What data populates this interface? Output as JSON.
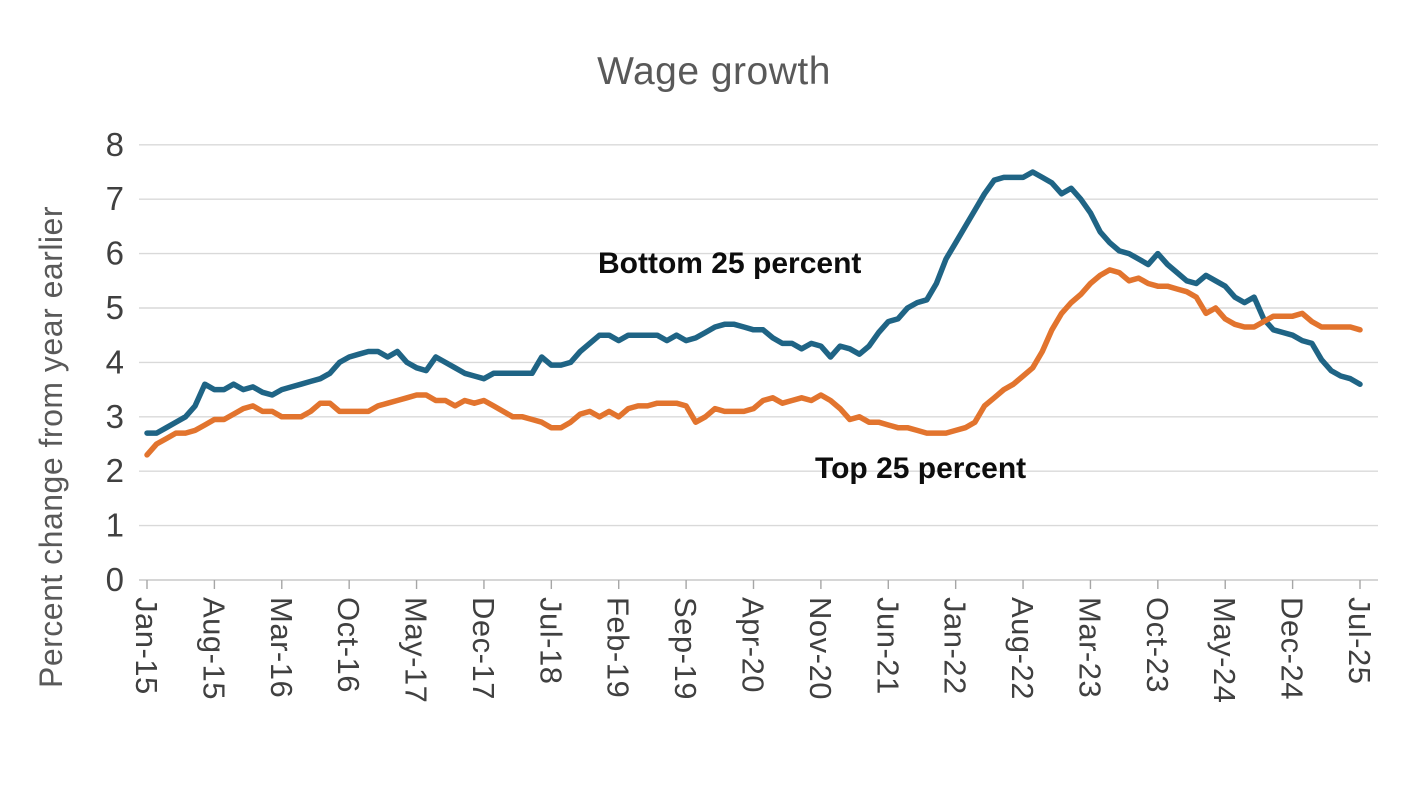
{
  "page": {
    "background": "#ffffff"
  },
  "chart_data": {
    "type": "line",
    "title": "Wage growth",
    "xlabel": "",
    "ylabel": "Percent change from year earlier",
    "ylim": [
      0,
      8
    ],
    "yticks": [
      0,
      1,
      2,
      3,
      4,
      5,
      6,
      7,
      8
    ],
    "grid": "horizontal",
    "legend_position": "none (inline text annotations next to lines)",
    "x_start": "Jan-15",
    "x_end": "Jul-25",
    "x_step_months": 1,
    "x_points_count": 127,
    "xtick_step_months": 7,
    "xtick_labels": [
      "Jan-15",
      "Aug-15",
      "Mar-16",
      "Oct-16",
      "May-17",
      "Dec-17",
      "Jul-18",
      "Feb-19",
      "Sep-19",
      "Apr-20",
      "Nov-20",
      "Jun-21",
      "Jan-22",
      "Aug-22",
      "Mar-23",
      "Oct-23",
      "May-24",
      "Dec-24",
      "Jul-25"
    ],
    "annotations": [
      {
        "text": "Bottom 25 percent",
        "series": "Bottom 25 percent"
      },
      {
        "text": "Top 25 percent",
        "series": "Top 25 percent"
      }
    ],
    "series": [
      {
        "name": "Bottom 25 percent",
        "color": "#1f6485",
        "values": [
          2.7,
          2.7,
          2.8,
          2.9,
          3.0,
          3.2,
          3.6,
          3.5,
          3.5,
          3.6,
          3.5,
          3.55,
          3.45,
          3.4,
          3.5,
          3.55,
          3.6,
          3.65,
          3.7,
          3.8,
          4.0,
          4.1,
          4.15,
          4.2,
          4.2,
          4.1,
          4.2,
          4.0,
          3.9,
          3.85,
          4.1,
          4.0,
          3.9,
          3.8,
          3.75,
          3.7,
          3.8,
          3.8,
          3.8,
          3.8,
          3.8,
          4.1,
          3.95,
          3.95,
          4.0,
          4.2,
          4.35,
          4.5,
          4.5,
          4.4,
          4.5,
          4.5,
          4.5,
          4.5,
          4.4,
          4.5,
          4.4,
          4.45,
          4.55,
          4.65,
          4.7,
          4.7,
          4.65,
          4.6,
          4.6,
          4.45,
          4.35,
          4.35,
          4.25,
          4.35,
          4.3,
          4.1,
          4.3,
          4.25,
          4.15,
          4.3,
          4.55,
          4.75,
          4.8,
          5.0,
          5.1,
          5.15,
          5.45,
          5.9,
          6.2,
          6.5,
          6.8,
          7.1,
          7.35,
          7.4,
          7.4,
          7.4,
          7.5,
          7.4,
          7.3,
          7.1,
          7.2,
          7.0,
          6.75,
          6.4,
          6.2,
          6.05,
          6.0,
          5.9,
          5.8,
          6.0,
          5.8,
          5.65,
          5.5,
          5.45,
          5.6,
          5.5,
          5.4,
          5.2,
          5.1,
          5.2,
          4.8,
          4.6,
          4.55,
          4.5,
          4.4,
          4.35,
          4.05,
          3.85,
          3.75,
          3.7,
          3.6
        ]
      },
      {
        "name": "Top 25 percent",
        "color": "#e2742e",
        "values": [
          2.3,
          2.5,
          2.6,
          2.7,
          2.7,
          2.75,
          2.85,
          2.95,
          2.95,
          3.05,
          3.15,
          3.2,
          3.1,
          3.1,
          3.0,
          3.0,
          3.0,
          3.1,
          3.25,
          3.25,
          3.1,
          3.1,
          3.1,
          3.1,
          3.2,
          3.25,
          3.3,
          3.35,
          3.4,
          3.4,
          3.3,
          3.3,
          3.2,
          3.3,
          3.25,
          3.3,
          3.2,
          3.1,
          3.0,
          3.0,
          2.95,
          2.9,
          2.8,
          2.8,
          2.9,
          3.05,
          3.1,
          3.0,
          3.1,
          3.0,
          3.15,
          3.2,
          3.2,
          3.25,
          3.25,
          3.25,
          3.2,
          2.9,
          3.0,
          3.15,
          3.1,
          3.1,
          3.1,
          3.15,
          3.3,
          3.35,
          3.25,
          3.3,
          3.35,
          3.3,
          3.4,
          3.3,
          3.15,
          2.95,
          3.0,
          2.9,
          2.9,
          2.85,
          2.8,
          2.8,
          2.75,
          2.7,
          2.7,
          2.7,
          2.75,
          2.8,
          2.9,
          3.2,
          3.35,
          3.5,
          3.6,
          3.75,
          3.9,
          4.2,
          4.6,
          4.9,
          5.1,
          5.25,
          5.45,
          5.6,
          5.7,
          5.65,
          5.5,
          5.55,
          5.45,
          5.4,
          5.4,
          5.35,
          5.3,
          5.2,
          4.9,
          5.0,
          4.8,
          4.7,
          4.65,
          4.65,
          4.75,
          4.85,
          4.85,
          4.85,
          4.9,
          4.75,
          4.65,
          4.65,
          4.65,
          4.65,
          4.6
        ]
      }
    ],
    "colors": {
      "grid": "#d9d9d9",
      "axis_line": "#c9c9c9",
      "tick_mark": "#a6a6a6",
      "title_text": "#595959",
      "axis_label_text": "#595959",
      "tick_text": "#404040",
      "annotation_text": "#0d0d0d",
      "background": "#ffffff"
    }
  }
}
